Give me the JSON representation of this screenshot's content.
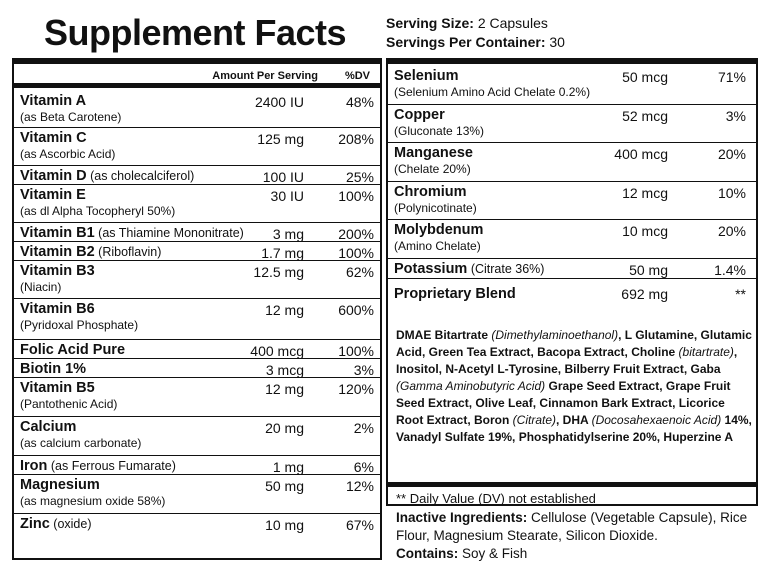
{
  "title": "Supplement Facts",
  "serving": {
    "size_label": "Serving Size:",
    "size_value": "2 Capsules",
    "per_container_label": "Servings Per Container:",
    "per_container_value": "30"
  },
  "columns": {
    "amount": "Amount Per Serving",
    "dv": "%DV"
  },
  "left_rows": [
    {
      "name": "Vitamin A",
      "inline": "",
      "source": "(as Beta Carotene)",
      "amount": "2400 IU",
      "dv": "48%"
    },
    {
      "name": "Vitamin C",
      "inline": "",
      "source": "(as Ascorbic Acid)",
      "amount": "125 mg",
      "dv": "208%"
    },
    {
      "name": "Vitamin D",
      "inline": "(as cholecalciferol)",
      "source": "",
      "amount": "100 IU",
      "dv": "25%"
    },
    {
      "name": "Vitamin E",
      "inline": "",
      "source": "(as dl Alpha Tocopheryl 50%)",
      "amount": "30 IU",
      "dv": "100%"
    },
    {
      "name": "Vitamin B1",
      "inline": "(as Thiamine Mononitrate)",
      "source": "",
      "amount": "3 mg",
      "dv": "200%"
    },
    {
      "name": "Vitamin B2",
      "inline": "(Riboflavin)",
      "source": "",
      "amount": "1.7 mg",
      "dv": "100%"
    },
    {
      "name": "Vitamin B3",
      "inline": "",
      "source": "(Niacin)",
      "amount": "12.5 mg",
      "dv": "62%"
    },
    {
      "name": "Vitamin B6",
      "inline": "",
      "source": "(Pyridoxal Phosphate)",
      "amount": "12 mg",
      "dv": "600%"
    },
    {
      "name": "Folic Acid Pure",
      "inline": "",
      "source": "",
      "amount": "400 mcg",
      "dv": "100%"
    },
    {
      "name": "Biotin 1%",
      "inline": "",
      "source": "",
      "amount": "3 mcg",
      "dv": "3%"
    },
    {
      "name": "Vitamin B5",
      "inline": "",
      "source": "(Pantothenic Acid)",
      "amount": "12 mg",
      "dv": "120%"
    },
    {
      "name": "Calcium",
      "inline": "",
      "source": "(as calcium carbonate)",
      "amount": "20 mg",
      "dv": "2%"
    },
    {
      "name": "Iron",
      "inline": "(as Ferrous Fumarate)",
      "source": "",
      "amount": "1 mg",
      "dv": "6%"
    },
    {
      "name": "Magnesium",
      "inline": "",
      "source": "(as magnesium oxide 58%)",
      "amount": "50 mg",
      "dv": "12%"
    },
    {
      "name": "Zinc",
      "inline": "(oxide)",
      "source": "",
      "amount": "10 mg",
      "dv": "67%"
    }
  ],
  "right_rows": [
    {
      "name": "Selenium",
      "inline": "",
      "source": "(Selenium Amino Acid Chelate 0.2%)",
      "amount": "50 mcg",
      "dv": "71%"
    },
    {
      "name": "Copper",
      "inline": "",
      "source": "(Gluconate 13%)",
      "amount": "52 mcg",
      "dv": "3%"
    },
    {
      "name": "Manganese",
      "inline": "",
      "source": "(Chelate 20%)",
      "amount": "400 mcg",
      "dv": "20%"
    },
    {
      "name": "Chromium",
      "inline": "",
      "source": "(Polynicotinate)",
      "amount": "12 mcg",
      "dv": "10%"
    },
    {
      "name": "Molybdenum",
      "inline": "",
      "source": "(Amino Chelate)",
      "amount": "10 mcg",
      "dv": "20%"
    },
    {
      "name": "Potassium",
      "inline": "(Citrate 36%)",
      "source": "",
      "amount": "50 mg",
      "dv": "1.4%"
    },
    {
      "name": "Proprietary Blend",
      "inline": "",
      "source": "",
      "amount": "692 mg",
      "dv": "**"
    }
  ],
  "blend_parts": [
    {
      "t": "DMAE Bitartrate ",
      "i": false
    },
    {
      "t": "(Dimethylaminoethanol)",
      "i": true
    },
    {
      "t": ", L Glutamine, Glutamic Acid, Green Tea Extract, Bacopa Extract, Choline ",
      "i": false
    },
    {
      "t": "(bitartrate)",
      "i": true
    },
    {
      "t": ", Inositol, N-Acetyl L-Tyrosine, Bilberry Fruit Extract, Gaba ",
      "i": false
    },
    {
      "t": "(Gamma Aminobutyric Acid)",
      "i": true
    },
    {
      "t": " Grape Seed Extract, Grape Fruit Seed Extract, Olive Leaf, Cinnamon Bark Extract, Licorice Root Extract, Boron ",
      "i": false
    },
    {
      "t": "(Citrate)",
      "i": true
    },
    {
      "t": ", DHA ",
      "i": false
    },
    {
      "t": "(Docosahexaenoic Acid)",
      "i": true
    },
    {
      "t": " 14%, Vanadyl Sulfate 19%, Phosphatidylserine 20%, Huperzine A",
      "i": false
    }
  ],
  "dv_note": "** Daily Value (DV) not established",
  "inactive": {
    "label": "Inactive Ingredients:",
    "text": " Cellulose (Vegetable Capsule), Rice Flour, Magnesium Stearate, Silicon Dioxide.",
    "contains_label": "Contains:",
    "contains_text": " Soy & Fish"
  }
}
